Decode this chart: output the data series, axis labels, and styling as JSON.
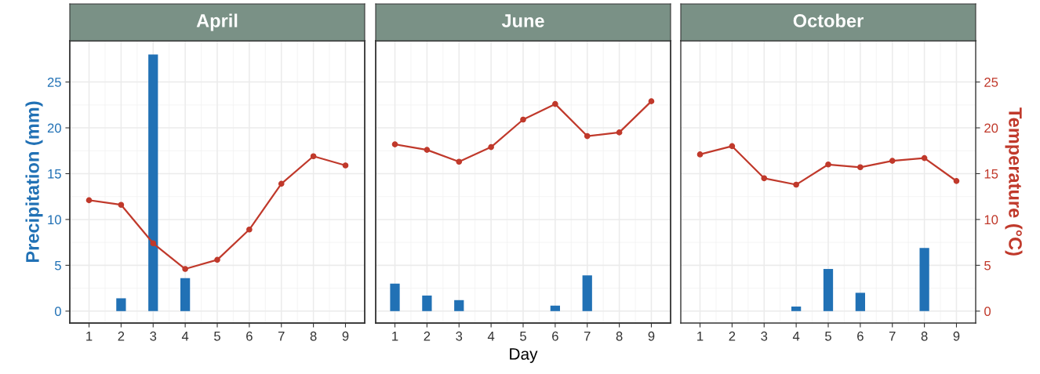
{
  "chart_data": [
    {
      "type": "bar",
      "title": "April",
      "ylabel": "Precipitation (mm)",
      "categories": [
        "1",
        "2",
        "3",
        "4",
        "5",
        "6",
        "7",
        "8",
        "9"
      ],
      "tick_labels": "xy",
      "grid": true,
      "ylim": [
        -1.3,
        29.5
      ],
      "yticks": [
        0,
        5,
        10,
        15,
        20,
        25
      ],
      "series": [
        {
          "color": "#2171b5",
          "values": [
            null,
            1.4,
            28.0,
            3.6,
            null,
            null,
            null,
            null,
            null
          ]
        },
        {
          "type": "line",
          "color": "#c0392b",
          "marker": "circle",
          "values": [
            12.1,
            11.6,
            7.4,
            4.6,
            5.6,
            8.9,
            13.9,
            16.9,
            15.9
          ]
        }
      ]
    },
    {
      "type": "bar",
      "title": "June",
      "xlabel": "Day",
      "categories": [
        "1",
        "2",
        "3",
        "4",
        "5",
        "6",
        "7",
        "8",
        "9"
      ],
      "tick_labels": "x",
      "grid": true,
      "ylim": [
        -1.3,
        29.5
      ],
      "yticks": [
        0,
        5,
        10,
        15,
        20,
        25
      ],
      "series": [
        {
          "color": "#2171b5",
          "values": [
            3.0,
            1.7,
            1.2,
            null,
            null,
            0.6,
            3.9,
            null,
            null
          ]
        },
        {
          "type": "line",
          "color": "#c0392b",
          "marker": "circle",
          "values": [
            18.2,
            17.6,
            16.3,
            17.9,
            20.9,
            22.6,
            19.1,
            19.5,
            22.9
          ]
        }
      ]
    },
    {
      "type": "bar",
      "title": "October",
      "y2label": "Temperature (°C)",
      "categories": [
        "1",
        "2",
        "3",
        "4",
        "5",
        "6",
        "7",
        "8",
        "9"
      ],
      "tick_labels": "xy2",
      "grid": true,
      "y2lim": [
        -1.3,
        29.5
      ],
      "y2ticks": [
        0,
        5,
        10,
        15,
        20,
        25
      ],
      "series": [
        {
          "axis": "y2",
          "color": "#2171b5",
          "values": [
            null,
            null,
            null,
            0.5,
            4.6,
            2.0,
            null,
            6.9,
            null
          ]
        },
        {
          "type": "line",
          "axis": "y2",
          "color": "#c0392b",
          "marker": "circle",
          "values": [
            17.1,
            18.0,
            14.5,
            13.8,
            16.0,
            15.7,
            16.4,
            16.7,
            14.2
          ]
        }
      ]
    }
  ]
}
